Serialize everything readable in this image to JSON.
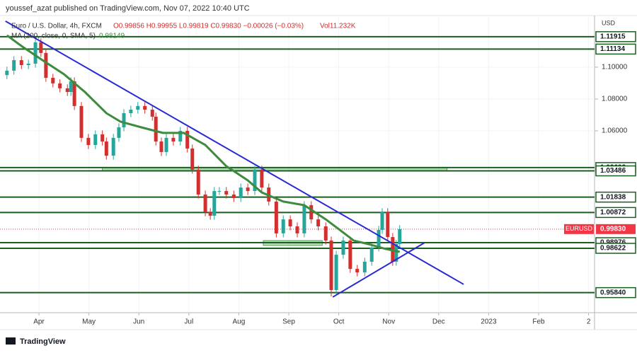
{
  "header": {
    "title": "youssef_azat published on TradingView.com, Nov 07, 2022 10:40 UTC"
  },
  "legend": {
    "symbol": "Euro / U.S. Dollar, 4h, FXCM",
    "ohlc": "O0.99856 H0.99955 L0.99819 C0.99830 −0.00026 (−0.03%)",
    "volume": "Vol11.232K",
    "ma_value": "0.98149"
  },
  "footer": {
    "brand": "TradingView"
  },
  "chart_data": {
    "type": "candlestick",
    "currency": "USD",
    "up_color": "#26a69a",
    "down_color": "#d32f2f",
    "x": [
      3.36,
      3.5,
      3.65,
      3.79,
      3.93,
      4.04,
      4.14,
      4.28,
      4.42,
      4.57,
      4.64,
      4.71,
      4.85,
      4.99,
      5.13,
      5.27,
      5.35,
      5.49,
      5.6,
      5.7,
      5.84,
      5.98,
      6.12,
      6.27,
      6.34,
      6.45,
      6.55,
      6.69,
      6.83,
      6.97,
      7.07,
      7.19,
      7.33,
      7.43,
      7.51,
      7.61,
      7.75,
      7.9,
      8.04,
      8.18,
      8.32,
      8.46,
      8.6,
      8.75,
      8.89,
      9.03,
      9.17,
      9.31,
      9.45,
      9.59,
      9.74,
      9.85,
      9.95,
      10.09,
      10.23,
      10.37,
      10.52,
      10.66,
      10.8,
      10.87,
      10.98,
      11.08,
      11.15,
      11.22
    ],
    "open": [
      1.095,
      1.0978,
      1.1044,
      1.1013,
      1.1022,
      1.1156,
      1.1089,
      1.0933,
      1.0898,
      1.0867,
      1.0844,
      1.0911,
      1.0756,
      1.0556,
      1.0511,
      1.0578,
      1.0533,
      1.0444,
      1.0556,
      1.0622,
      1.0711,
      1.0733,
      1.0756,
      1.0733,
      1.0689,
      1.0533,
      1.0467,
      1.0556,
      1.0533,
      1.06,
      1.0489,
      1.0356,
      1.02,
      1.0089,
      1.0067,
      1.0222,
      1.0222,
      1.02,
      1.0178,
      1.0244,
      1.0222,
      1.0356,
      1.0244,
      1.0156,
      0.9956,
      1.0044,
      1.0,
      0.9956,
      1.0133,
      1.0044,
      1.0,
      0.9911,
      0.96,
      0.9822,
      0.9911,
      0.9733,
      0.9711,
      0.9778,
      0.9867,
      0.9978,
      1.0089,
      0.9933,
      0.9778,
      0.9889
    ],
    "high": [
      1.1003,
      1.1069,
      1.1069,
      1.1047,
      1.1181,
      1.1181,
      1.1114,
      1.0958,
      1.0923,
      1.0892,
      1.0936,
      1.0936,
      1.0781,
      1.0581,
      1.0603,
      1.0603,
      1.0558,
      1.0581,
      1.0647,
      1.0736,
      1.0758,
      1.0781,
      1.0781,
      1.0758,
      1.0714,
      1.0558,
      1.0581,
      1.0581,
      1.0625,
      1.0625,
      1.0514,
      1.0381,
      1.0225,
      1.0114,
      1.0247,
      1.0247,
      1.0247,
      1.0225,
      1.0269,
      1.0269,
      1.0381,
      1.0381,
      1.0269,
      1.0181,
      1.0069,
      1.0069,
      1.0025,
      1.0158,
      1.0158,
      1.0069,
      1.0025,
      0.9936,
      0.9847,
      0.9936,
      0.9936,
      0.9758,
      0.9803,
      0.9892,
      1.0003,
      1.0114,
      1.0114,
      0.9958,
      0.9914,
      1.0008
    ],
    "low": [
      1.0925,
      1.0953,
      1.0988,
      1.0988,
      1.0997,
      1.1064,
      1.0908,
      1.0873,
      1.0842,
      1.0819,
      1.0819,
      1.0731,
      1.0531,
      1.0486,
      1.0486,
      1.0508,
      1.0419,
      1.0419,
      1.0531,
      1.0597,
      1.0686,
      1.0708,
      1.0708,
      1.0664,
      1.0508,
      1.0442,
      1.0442,
      1.0508,
      1.0508,
      1.0464,
      1.0331,
      1.0175,
      1.0064,
      1.0042,
      1.0042,
      1.0197,
      1.0175,
      1.0153,
      1.0153,
      1.0197,
      1.0197,
      1.0219,
      1.0131,
      0.9931,
      0.9931,
      0.9975,
      0.9931,
      0.9931,
      1.0019,
      0.9975,
      0.9886,
      0.956,
      0.9575,
      0.9797,
      0.9708,
      0.9686,
      0.9686,
      0.9753,
      0.9842,
      0.9953,
      0.9908,
      0.9753,
      0.9753,
      0.9864
    ],
    "close": [
      1.0978,
      1.1044,
      1.1013,
      1.1022,
      1.1156,
      1.1089,
      1.0933,
      1.0898,
      1.0867,
      1.0844,
      1.0911,
      1.0756,
      1.0556,
      1.0511,
      1.0578,
      1.0533,
      1.0444,
      1.0556,
      1.0622,
      1.0711,
      1.0733,
      1.0756,
      1.0733,
      1.0689,
      1.0533,
      1.0467,
      1.0556,
      1.0533,
      1.06,
      1.0489,
      1.0356,
      1.02,
      1.0089,
      1.0067,
      1.0222,
      1.0222,
      1.02,
      1.0178,
      1.0244,
      1.0222,
      1.0356,
      1.0244,
      1.0156,
      0.9956,
      1.0044,
      1.0,
      0.9956,
      1.0133,
      1.0044,
      1.0,
      0.9911,
      0.96,
      0.9822,
      0.9911,
      0.9733,
      0.9711,
      0.9778,
      0.9867,
      0.9978,
      1.0089,
      0.9933,
      0.9778,
      0.9889,
      0.9983
    ],
    "sma": {
      "name": "MA (200, close, 0, SMA, 5)",
      "color": "#3d8b3d",
      "x": [
        3.36,
        3.65,
        4.07,
        4.5,
        4.92,
        5.35,
        5.63,
        6.05,
        6.48,
        6.9,
        7.33,
        7.75,
        8.18,
        8.46,
        8.89,
        9.31,
        9.74,
        10.02,
        10.3,
        10.59,
        10.94,
        11.22
      ],
      "values": [
        1.12,
        1.1133,
        1.1044,
        1.0956,
        1.0844,
        1.0711,
        1.0658,
        1.0622,
        1.0587,
        1.0587,
        1.0511,
        1.0378,
        1.0289,
        1.0213,
        1.0156,
        1.0133,
        1.0044,
        0.9978,
        0.9911,
        0.9889,
        0.9858,
        0.984
      ]
    },
    "trendlines": [
      {
        "color": "#2a2ad4",
        "x": [
          3.33,
          12.5
        ],
        "values": [
          1.1289,
          0.9636
        ]
      },
      {
        "color": "#2a2ad4",
        "x": [
          9.88,
          11.72
        ],
        "values": [
          0.9556,
          0.9898
        ]
      }
    ],
    "levels": {
      "color": "#1b5e20",
      "values": [
        1.11915,
        1.11134,
        1.03693,
        1.03486,
        1.01838,
        1.00872,
        0.98976,
        0.98622,
        {
          "value": 0.9584,
          "label": "0.95840"
        }
      ]
    },
    "zones": [
      {
        "color": "#81c784",
        "x": [
          5.27,
          12.17
        ],
        "values": [
          1.03486,
          1.03693
        ]
      },
      {
        "color": "#81c784",
        "x": [
          8.49,
          9.67
        ],
        "values": [
          0.988,
          0.9911
        ]
      }
    ],
    "last": {
      "symbol": "EURUSD",
      "value": 0.9983,
      "label": "0.99830",
      "color": "#f23645"
    },
    "xlim": [
      3.221,
      15.119
    ],
    "ylim": [
      0.9458,
      1.1324
    ],
    "xticks": [
      {
        "value": 4,
        "label": "Apr"
      },
      {
        "value": 5,
        "label": "May"
      },
      {
        "value": 6,
        "label": "Jun"
      },
      {
        "value": 7,
        "label": "Jul"
      },
      {
        "value": 8,
        "label": "Aug"
      },
      {
        "value": 9,
        "label": "Sep"
      },
      {
        "value": 10,
        "label": "Oct"
      },
      {
        "value": 11,
        "label": "Nov"
      },
      {
        "value": 12,
        "label": "Dec"
      },
      {
        "value": 13,
        "label": "2023"
      },
      {
        "value": 14,
        "label": "Feb"
      },
      {
        "value": 15,
        "label": "2"
      }
    ],
    "yticks": [
      {
        "value": 1.1,
        "label": "1.10000"
      },
      {
        "value": 1.08,
        "label": "1.08000"
      },
      {
        "value": 1.06,
        "label": "1.06000"
      }
    ]
  }
}
